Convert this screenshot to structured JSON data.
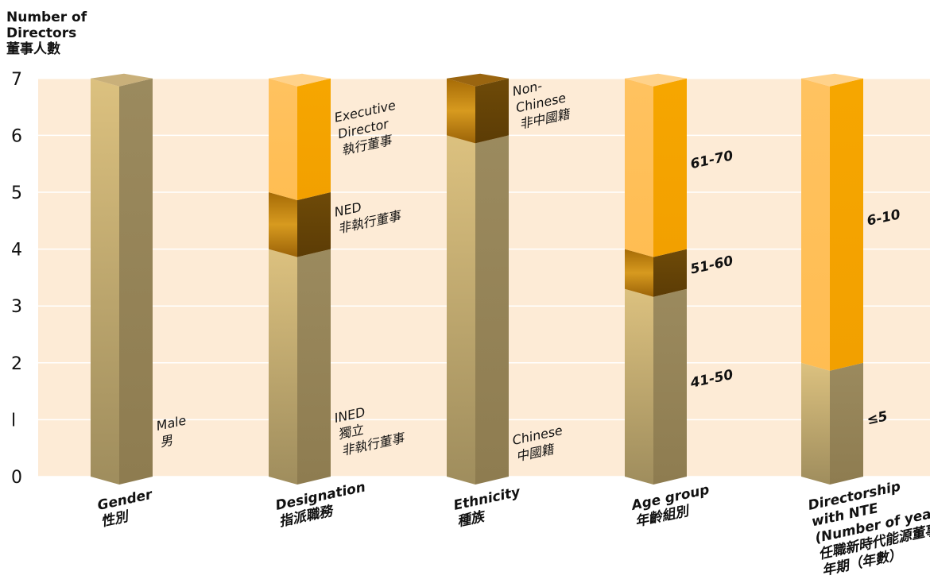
{
  "chart_data": {
    "type": "bar",
    "stacked": true,
    "ylabel": [
      "Number of",
      "Directors",
      "董事人數"
    ],
    "ylim": [
      0,
      7
    ],
    "yticks": [
      "0",
      "l",
      "2",
      "3",
      "4",
      "5",
      "6",
      "7"
    ],
    "grid": true,
    "colors": {
      "gold_light": "#d7bd80",
      "gold_dark": "#9b8a5e",
      "amber": "#b7780c",
      "brown": "#6e4a08",
      "orange_light": "#ffc15a",
      "orange_dark": "#f5a400",
      "background": "#fdebd6"
    },
    "categories": [
      {
        "label": [
          "Gender",
          "性別"
        ],
        "segments": [
          {
            "label": [
              "Male",
              "男"
            ],
            "value": 7,
            "style": "gold"
          }
        ]
      },
      {
        "label": [
          "Designation",
          "指派職務"
        ],
        "segments": [
          {
            "label": [
              "INED",
              "獨立",
              "非執行董事"
            ],
            "value": 4,
            "style": "gold"
          },
          {
            "label": [
              "NED",
              "非執行董事"
            ],
            "value": 1,
            "style": "brown"
          },
          {
            "label": [
              "Executive",
              "Director",
              "執行董事"
            ],
            "value": 2,
            "style": "orange"
          }
        ]
      },
      {
        "label": [
          "Ethnicity",
          "種族"
        ],
        "segments": [
          {
            "label": [
              "Chinese",
              "中國籍"
            ],
            "value": 6,
            "style": "gold"
          },
          {
            "label": [
              "Non-",
              "Chinese",
              "非中國籍"
            ],
            "value": 1,
            "style": "brown"
          }
        ]
      },
      {
        "label": [
          "Age group",
          "年齡組別"
        ],
        "segments": [
          {
            "label": [
              "41-50"
            ],
            "value": 3.3,
            "style": "gold"
          },
          {
            "label": [
              "51-60"
            ],
            "value": 0.7,
            "style": "brown"
          },
          {
            "label": [
              "61-70"
            ],
            "value": 3,
            "style": "orange"
          }
        ]
      },
      {
        "label": [
          "Directorship",
          "with NTE",
          "(Number of years)",
          "任職新時代能源董事",
          "年期（年數）"
        ],
        "segments": [
          {
            "label": [
              "≤5"
            ],
            "value": 2,
            "style": "gold"
          },
          {
            "label": [
              "6-10"
            ],
            "value": 5,
            "style": "orange"
          }
        ]
      }
    ]
  }
}
